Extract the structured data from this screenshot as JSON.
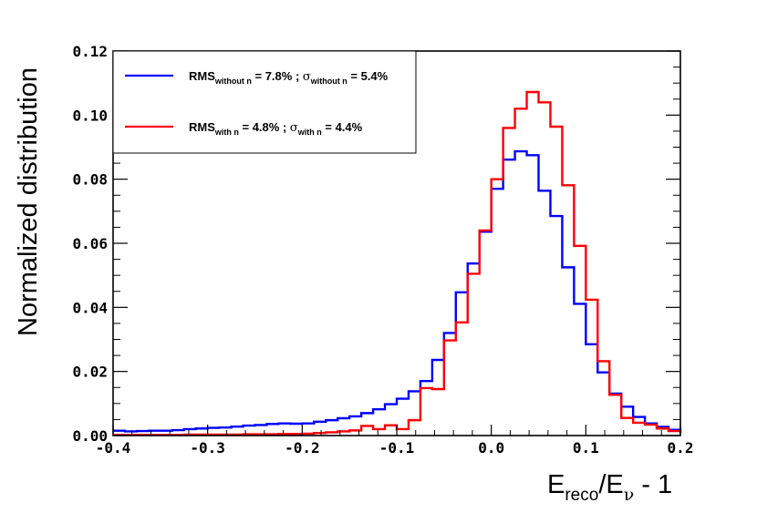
{
  "chart_data": {
    "type": "histogram",
    "title": "",
    "xlabel": {
      "base": "E",
      "sub1": "reco",
      "mid": "/E",
      "sub2": "ν",
      "tail": " - 1"
    },
    "ylabel": "Normalized distribution",
    "xlim": [
      -0.4,
      0.2
    ],
    "ylim": [
      0.0,
      0.12
    ],
    "grid": false,
    "legend_position": "top-left",
    "bin_width": 0.0125,
    "x_ticks": [
      {
        "value": -0.4,
        "label": "-0.4"
      },
      {
        "value": -0.3,
        "label": "-0.3"
      },
      {
        "value": -0.2,
        "label": "-0.2"
      },
      {
        "value": -0.1,
        "label": "-0.1"
      },
      {
        "value": 0.0,
        "label": "0.0"
      },
      {
        "value": 0.1,
        "label": "0.1"
      },
      {
        "value": 0.2,
        "label": "0.2"
      }
    ],
    "y_ticks": [
      {
        "value": 0.0,
        "label": "0.00"
      },
      {
        "value": 0.02,
        "label": "0.02"
      },
      {
        "value": 0.04,
        "label": "0.04"
      },
      {
        "value": 0.06,
        "label": "0.06"
      },
      {
        "value": 0.08,
        "label": "0.08"
      },
      {
        "value": 0.1,
        "label": "0.10"
      },
      {
        "value": 0.12,
        "label": "0.12"
      }
    ],
    "series": [
      {
        "name": "without n",
        "color": "#0000ff",
        "legend": {
          "rms": "RMS",
          "rms_sub": "without n",
          "rms_val": " = 7.8% ; ",
          "sigma": "σ",
          "sigma_sub": "without n",
          "sigma_val": " = 5.4%"
        },
        "values": [
          0.0015,
          0.0013,
          0.0014,
          0.0015,
          0.0015,
          0.0017,
          0.002,
          0.0022,
          0.0024,
          0.0025,
          0.0028,
          0.0031,
          0.0033,
          0.0036,
          0.0038,
          0.0037,
          0.0038,
          0.0043,
          0.0048,
          0.0054,
          0.006,
          0.007,
          0.0082,
          0.0098,
          0.0115,
          0.0138,
          0.017,
          0.0236,
          0.032,
          0.0447,
          0.0537,
          0.0636,
          0.077,
          0.0861,
          0.0887,
          0.0875,
          0.0764,
          0.0685,
          0.0525,
          0.0411,
          0.0285,
          0.0197,
          0.0131,
          0.009,
          0.0058,
          0.0038,
          0.0027,
          0.0018,
          0.0012
        ]
      },
      {
        "name": "with n",
        "color": "#ff0000",
        "legend": {
          "rms": "RMS",
          "rms_sub": "with n",
          "rms_val": " = 4.8% ; ",
          "sigma": "σ",
          "sigma_sub": "with n",
          "sigma_val": " = 4.4%"
        },
        "values": [
          0.0002,
          0.0002,
          0.0002,
          0.0002,
          0.0002,
          0.0002,
          0.0003,
          0.0003,
          0.0003,
          0.0003,
          0.0003,
          0.0004,
          0.0004,
          0.0004,
          0.0005,
          0.0005,
          0.0006,
          0.0008,
          0.001,
          0.0013,
          0.0016,
          0.003,
          0.002,
          0.0032,
          0.002,
          0.0048,
          0.0148,
          0.0145,
          0.0297,
          0.0353,
          0.0505,
          0.064,
          0.08,
          0.096,
          0.102,
          0.1072,
          0.104,
          0.0964,
          0.0781,
          0.0592,
          0.0424,
          0.0232,
          0.0127,
          0.0055,
          0.004,
          0.0034,
          0.0022,
          0.0014,
          0.0008
        ]
      }
    ]
  }
}
